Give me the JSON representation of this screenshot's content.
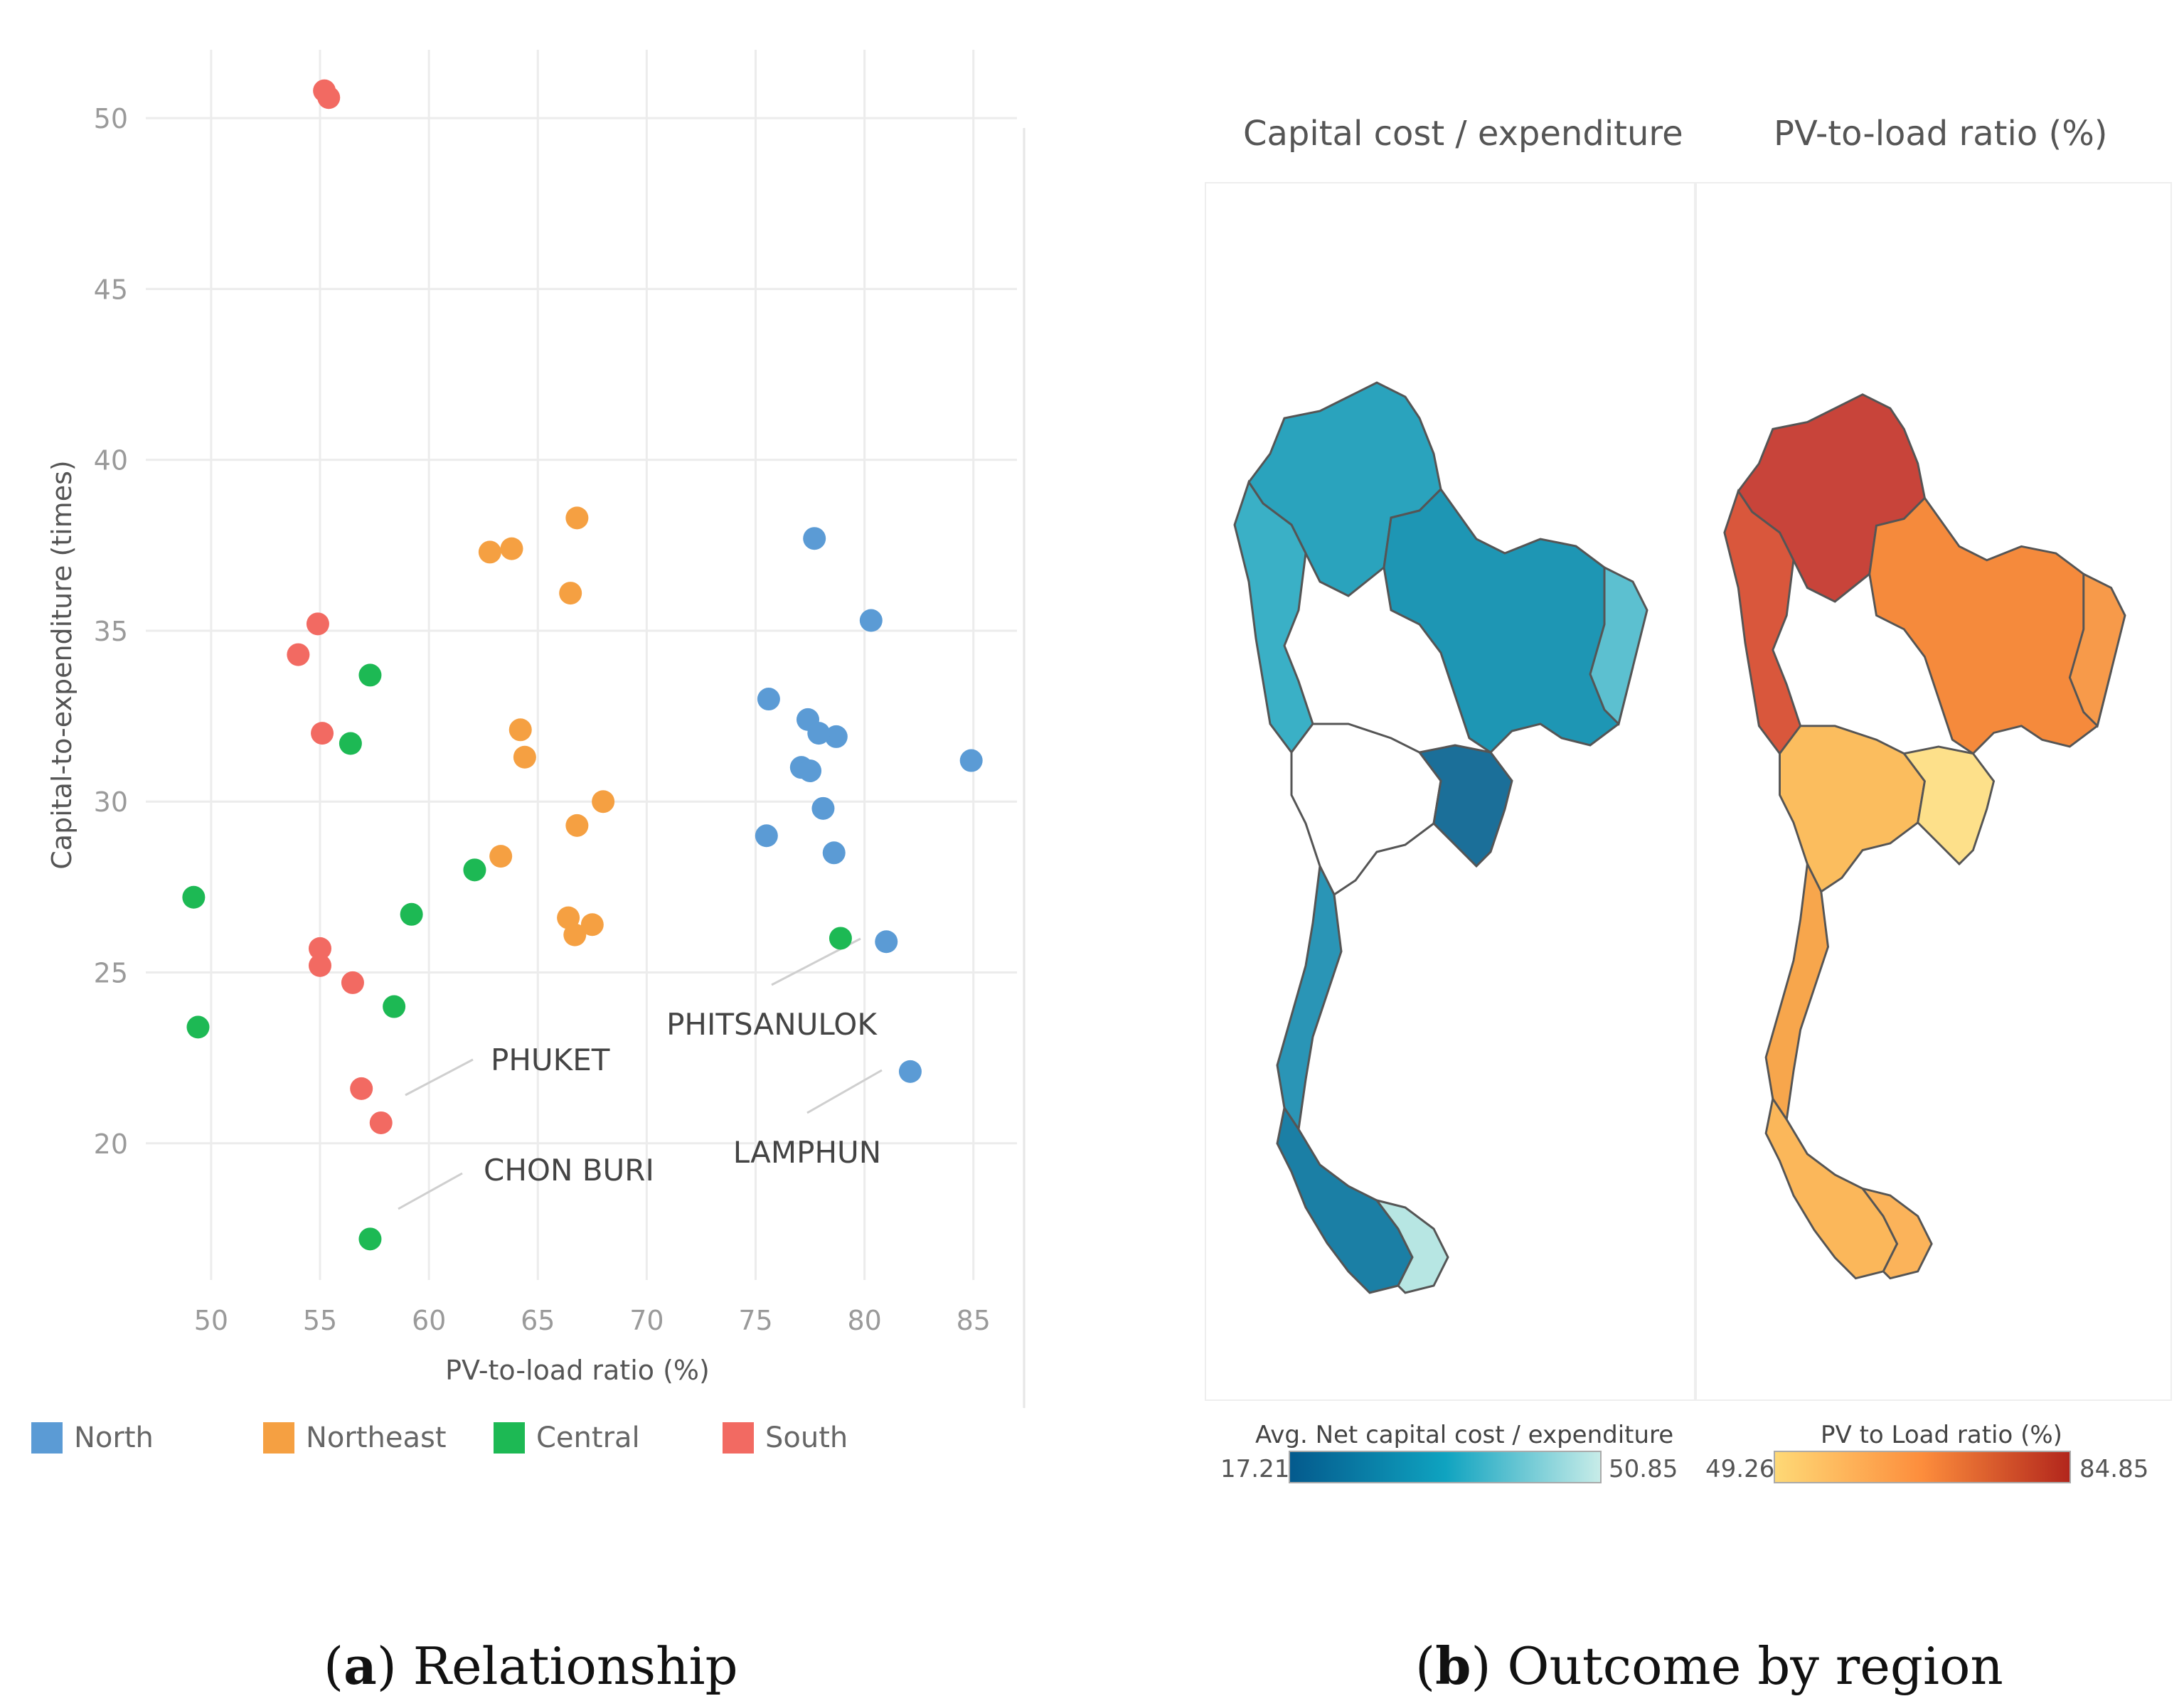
{
  "chart_data": [
    {
      "type": "scatter",
      "title": "",
      "xlabel": "PV-to-load ratio (%)",
      "ylabel": "Capital-to-expenditure (times)",
      "xlim": [
        47,
        87
      ],
      "ylim": [
        16,
        52
      ],
      "xticks": [
        50,
        55,
        60,
        65,
        70,
        75,
        80,
        85
      ],
      "yticks": [
        20,
        25,
        30,
        35,
        40,
        45,
        50
      ],
      "grid": true,
      "legend_position": "bottom",
      "series": [
        {
          "name": "North",
          "color": "#5b9bd5",
          "points": [
            [
              77.7,
              37.7
            ],
            [
              80.3,
              35.3
            ],
            [
              75.6,
              33.0
            ],
            [
              77.4,
              32.4
            ],
            [
              78.7,
              31.9
            ],
            [
              77.9,
              32.0
            ],
            [
              84.9,
              31.2
            ],
            [
              77.1,
              31.0
            ],
            [
              77.5,
              30.9
            ],
            [
              78.1,
              29.8
            ],
            [
              75.5,
              29.0
            ],
            [
              78.6,
              28.5
            ],
            [
              81.0,
              25.9
            ],
            [
              82.1,
              22.1
            ]
          ]
        },
        {
          "name": "Northeast",
          "color": "#f5a042",
          "points": [
            [
              66.8,
              38.3
            ],
            [
              62.8,
              37.3
            ],
            [
              63.8,
              37.4
            ],
            [
              66.5,
              36.1
            ],
            [
              64.2,
              32.1
            ],
            [
              64.4,
              31.3
            ],
            [
              68.0,
              30.0
            ],
            [
              66.8,
              29.3
            ],
            [
              63.3,
              28.4
            ],
            [
              66.4,
              26.6
            ],
            [
              67.5,
              26.4
            ],
            [
              66.7,
              26.1
            ]
          ]
        },
        {
          "name": "Central",
          "color": "#1db954",
          "points": [
            [
              57.3,
              33.7
            ],
            [
              56.4,
              31.7
            ],
            [
              62.1,
              28.0
            ],
            [
              49.2,
              27.2
            ],
            [
              59.2,
              26.7
            ],
            [
              78.9,
              26.0
            ],
            [
              58.4,
              24.0
            ],
            [
              49.4,
              23.4
            ],
            [
              57.3,
              17.2
            ]
          ]
        },
        {
          "name": "South",
          "color": "#f26a62",
          "points": [
            [
              55.2,
              50.8
            ],
            [
              55.4,
              50.6
            ],
            [
              54.9,
              35.2
            ],
            [
              54.0,
              34.3
            ],
            [
              55.1,
              32.0
            ],
            [
              55.0,
              25.7
            ],
            [
              55.0,
              25.2
            ],
            [
              56.5,
              24.7
            ],
            [
              56.9,
              21.6
            ],
            [
              57.8,
              20.6
            ]
          ]
        }
      ],
      "annotations": [
        {
          "text": "PHUKET",
          "point": [
            57.8,
            20.6
          ]
        },
        {
          "text": "CHON BURI",
          "point": [
            57.3,
            17.2
          ]
        },
        {
          "text": "PHITSANULOK",
          "point": [
            78.9,
            26.0
          ]
        },
        {
          "text": "LAMPHUN",
          "point": [
            82.1,
            22.1
          ]
        }
      ]
    },
    {
      "type": "choropleth",
      "title": "Capital cost / expenditure",
      "legend_title": "Avg. Net capital cost / expenditure",
      "range": [
        17.21,
        50.85
      ],
      "range_labels": [
        "17.21",
        "50.85"
      ],
      "colors": [
        "#045a8d",
        "#0fa3c0",
        "#c7ece8"
      ]
    },
    {
      "type": "choropleth",
      "title": "PV-to-load ratio (%)",
      "legend_title": "PV to Load ratio (%)",
      "range": [
        49.26,
        84.85
      ],
      "range_labels": [
        "49.26",
        "84.85"
      ],
      "colors": [
        "#fed976",
        "#fd8d3c",
        "#b2261c"
      ]
    }
  ],
  "legend": [
    {
      "label": "North",
      "color": "#5b9bd5"
    },
    {
      "label": "Northeast",
      "color": "#f5a042"
    },
    {
      "label": "Central",
      "color": "#1db954"
    },
    {
      "label": "South",
      "color": "#f26a62"
    }
  ],
  "captions": {
    "a_letter": "a",
    "a_text": " Relationship",
    "b_letter": "b",
    "b_text": " Outcome by region"
  }
}
